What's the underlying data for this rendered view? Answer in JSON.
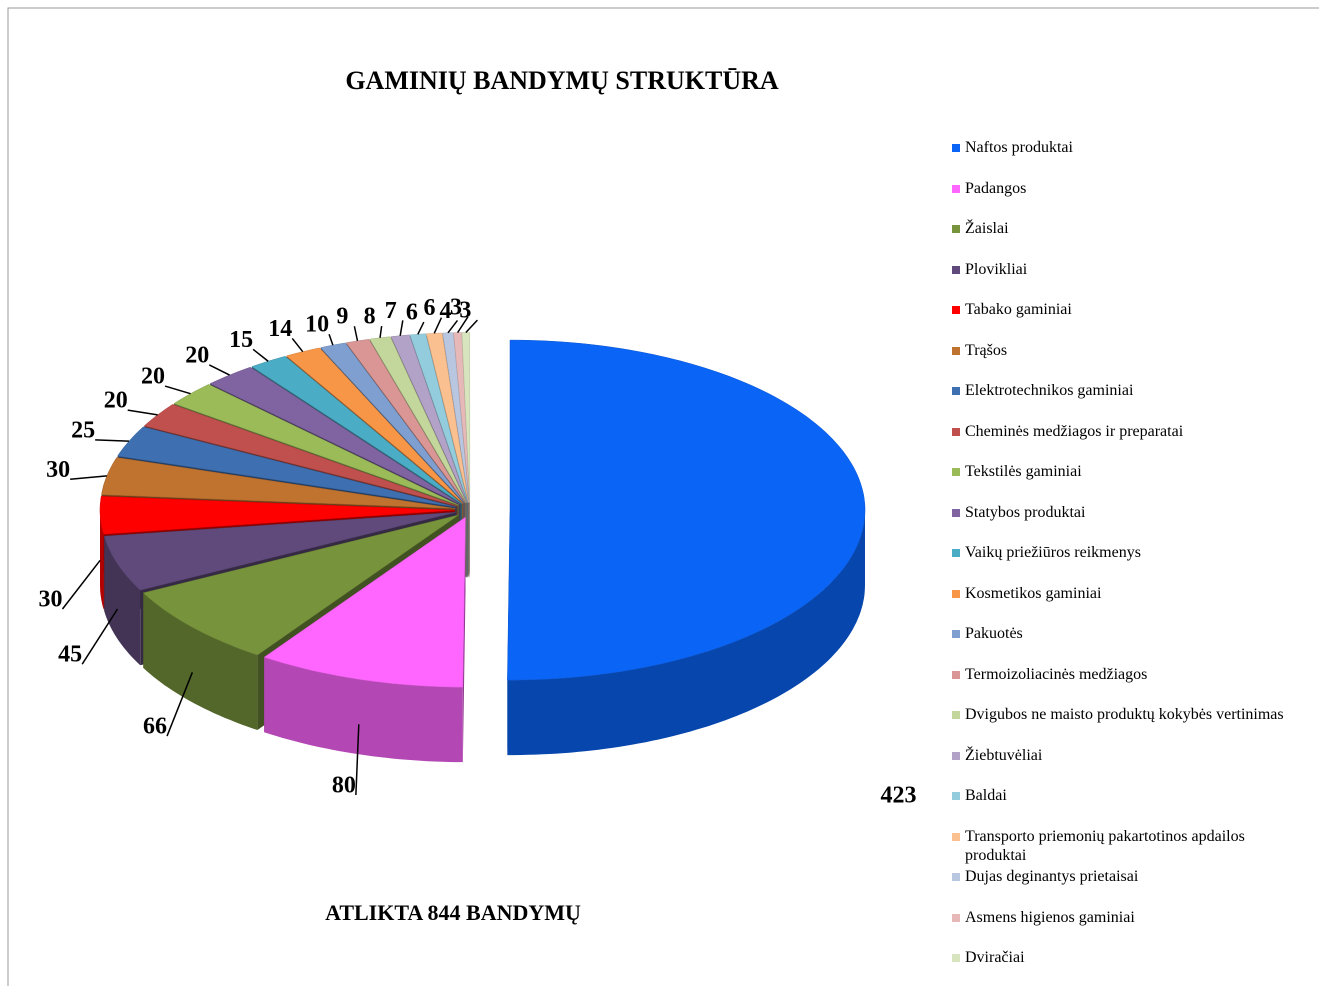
{
  "chart_data": {
    "type": "pie",
    "title": "GAMINIŲ BANDYMŲ STRUKTŪRA",
    "annotation": "ATLIKTA 844 BANDYMŲ",
    "categories": [
      "Naftos produktai",
      "Padangos",
      "Žaislai",
      "Plovikliai",
      "Tabako gaminiai",
      "Trąšos",
      "Elektrotechnikos gaminiai",
      "Cheminės medžiagos ir preparatai",
      "Tekstilės gaminiai",
      "Statybos produktai",
      "Vaikų priežiūros reikmenys",
      "Kosmetikos gaminiai",
      "Pakuotės",
      "Termoizoliacinės medžiagos",
      "Dvigubos ne maisto produktų kokybės vertinimas",
      "Žiebtuvėliai",
      "Baldai",
      "Transporto priemonių pakartotinos apdailos produktai",
      "Dujas deginantys prietaisai",
      "Asmens higienos gaminiai",
      "Dviračiai"
    ],
    "values": [
      423,
      80,
      66,
      45,
      30,
      30,
      25,
      20,
      20,
      20,
      15,
      14,
      10,
      9,
      8,
      7,
      6,
      6,
      4,
      3,
      3
    ],
    "colors": [
      "#0a64f5",
      "#ff66ff",
      "#77933c",
      "#604a7b",
      "#ff0000",
      "#c0722f",
      "#3e6fb0",
      "#c0504d",
      "#9bbb59",
      "#8064a2",
      "#4bacc6",
      "#f79646",
      "#7f9fd0",
      "#d99694",
      "#c3d69b",
      "#b3a2c7",
      "#93cddd",
      "#fac090",
      "#b9c6e0",
      "#e6b9b8",
      "#d7e4bd"
    ],
    "legend": "right"
  }
}
